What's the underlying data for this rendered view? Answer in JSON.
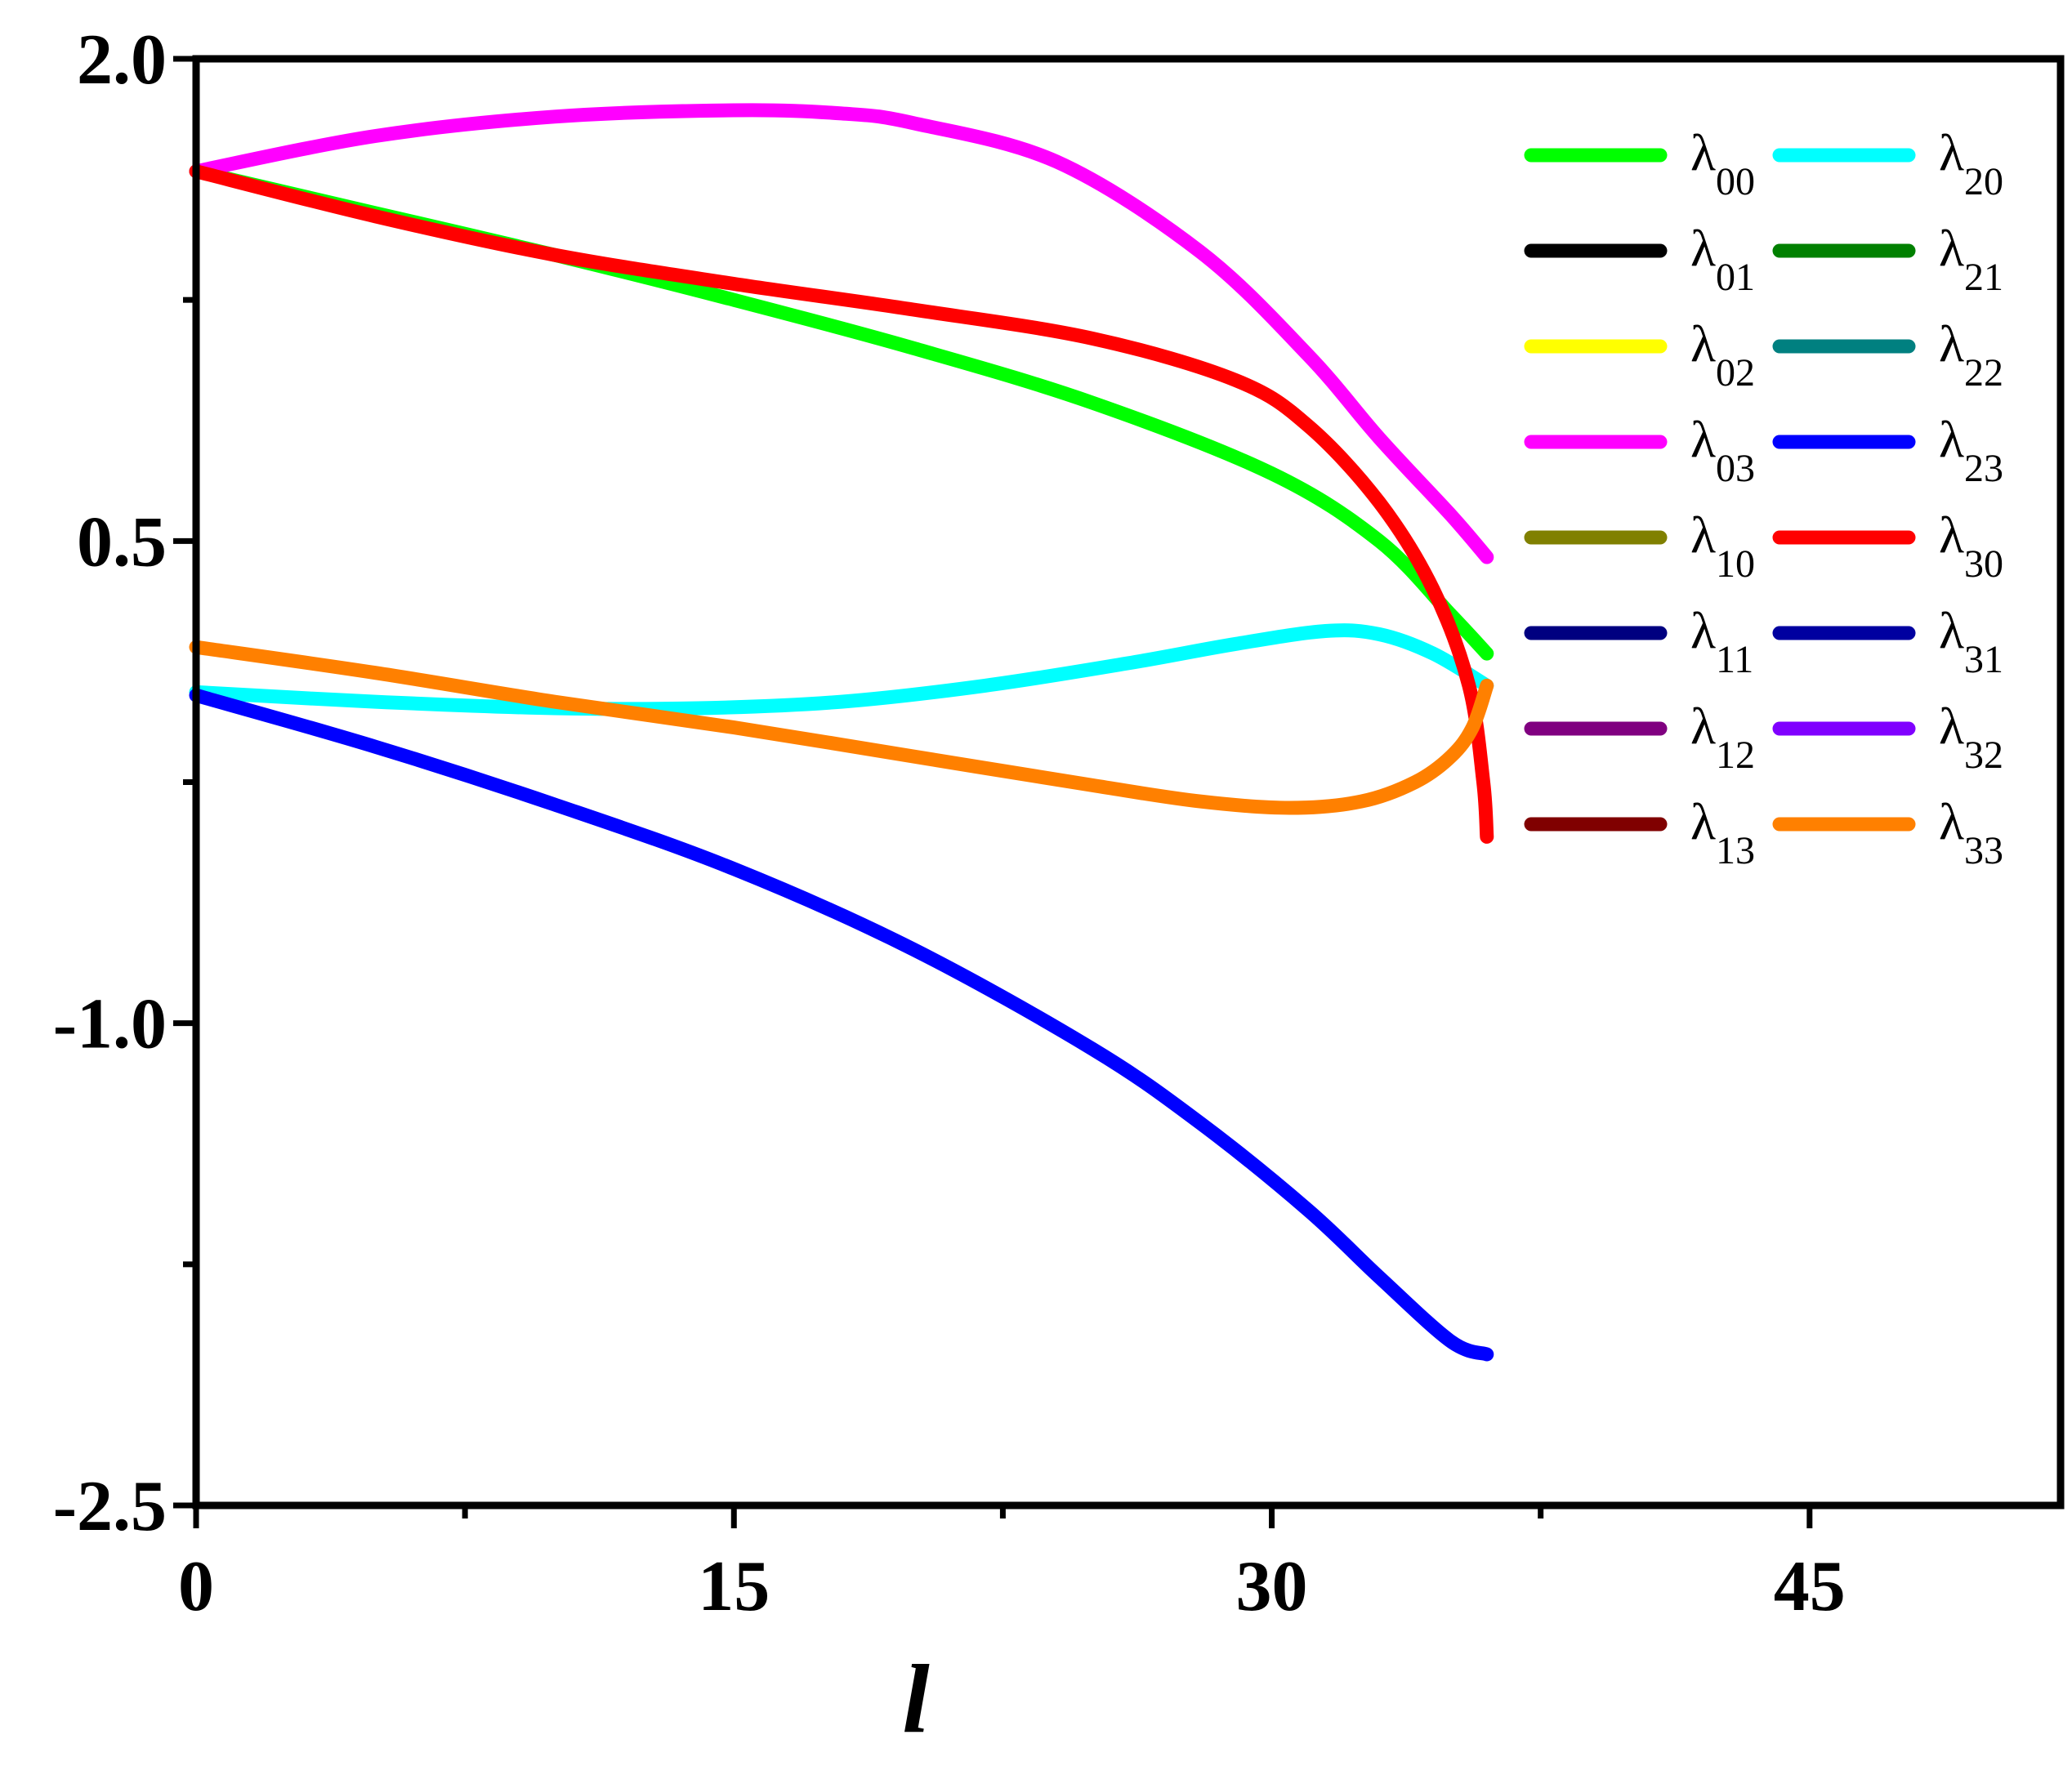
{
  "chart_data": {
    "type": "line",
    "xlabel": "l",
    "ylabel": "",
    "xlim": [
      0,
      52
    ],
    "ylim": [
      -2.5,
      2.0
    ],
    "xticks": [
      "0",
      "15",
      "30",
      "45"
    ],
    "yticks": [
      "2.0",
      "0.5",
      "-1.0",
      "-2.5"
    ],
    "grid": false,
    "legend": {
      "placement": "top-right",
      "columns": 2,
      "entries": [
        {
          "base": "λ",
          "sub": "00",
          "color": "#00ff00"
        },
        {
          "base": "λ",
          "sub": "01",
          "color": "#000000"
        },
        {
          "base": "λ",
          "sub": "02",
          "color": "#ffff00"
        },
        {
          "base": "λ",
          "sub": "03",
          "color": "#ff00ff"
        },
        {
          "base": "λ",
          "sub": "10",
          "color": "#808000"
        },
        {
          "base": "λ",
          "sub": "11",
          "color": "#000080"
        },
        {
          "base": "λ",
          "sub": "12",
          "color": "#800080"
        },
        {
          "base": "λ",
          "sub": "13",
          "color": "#800000"
        },
        {
          "base": "λ",
          "sub": "20",
          "color": "#00ffff"
        },
        {
          "base": "λ",
          "sub": "21",
          "color": "#008000"
        },
        {
          "base": "λ",
          "sub": "22",
          "color": "#008080"
        },
        {
          "base": "λ",
          "sub": "23",
          "color": "#0000ff"
        },
        {
          "base": "λ",
          "sub": "30",
          "color": "#ff0000"
        },
        {
          "base": "λ",
          "sub": "31",
          "color": "#0000a0"
        },
        {
          "base": "λ",
          "sub": "32",
          "color": "#8000ff"
        },
        {
          "base": "λ",
          "sub": "33",
          "color": "#ff8000"
        }
      ]
    },
    "series": [
      {
        "sub": "00",
        "color": "#00ff00",
        "x": [
          0,
          5,
          10,
          15,
          20,
          25,
          30,
          33,
          35,
          36
        ],
        "y": [
          1.65,
          1.52,
          1.39,
          1.25,
          1.1,
          0.93,
          0.71,
          0.5,
          0.27,
          0.15
        ]
      },
      {
        "sub": "03",
        "color": "#ff00ff",
        "x": [
          0,
          5,
          10,
          15,
          18,
          20,
          24,
          28,
          31,
          33,
          35,
          36
        ],
        "y": [
          1.65,
          1.76,
          1.82,
          1.84,
          1.83,
          1.8,
          1.68,
          1.4,
          1.08,
          0.82,
          0.58,
          0.45
        ]
      },
      {
        "sub": "20",
        "color": "#00ffff",
        "x": [
          0,
          5,
          10,
          14,
          18,
          22,
          26,
          29,
          31.5,
          33,
          34.5,
          36
        ],
        "y": [
          0.03,
          0.0,
          -0.02,
          -0.02,
          0.0,
          0.05,
          0.12,
          0.18,
          0.22,
          0.21,
          0.15,
          0.05
        ]
      },
      {
        "sub": "23",
        "color": "#0000ff",
        "x": [
          0,
          5,
          10,
          15,
          20,
          25,
          28,
          31,
          33,
          35,
          36
        ],
        "y": [
          0.02,
          -0.14,
          -0.32,
          -0.52,
          -0.77,
          -1.08,
          -1.31,
          -1.58,
          -1.79,
          -1.99,
          -2.03
        ]
      },
      {
        "sub": "30",
        "color": "#ff0000",
        "x": [
          0,
          5,
          10,
          15,
          20,
          25,
          29,
          31,
          33,
          34.5,
          35.5,
          35.9,
          36
        ],
        "y": [
          1.65,
          1.51,
          1.39,
          1.3,
          1.22,
          1.13,
          1.0,
          0.86,
          0.62,
          0.35,
          0.05,
          -0.25,
          -0.42
        ]
      },
      {
        "sub": "33",
        "color": "#ff8000",
        "x": [
          0,
          5,
          10,
          15,
          20,
          25,
          28,
          30.5,
          32.5,
          34,
          35,
          35.6,
          36
        ],
        "y": [
          0.17,
          0.09,
          0.0,
          -0.08,
          -0.17,
          -0.26,
          -0.31,
          -0.33,
          -0.31,
          -0.25,
          -0.17,
          -0.08,
          0.05
        ]
      }
    ]
  }
}
